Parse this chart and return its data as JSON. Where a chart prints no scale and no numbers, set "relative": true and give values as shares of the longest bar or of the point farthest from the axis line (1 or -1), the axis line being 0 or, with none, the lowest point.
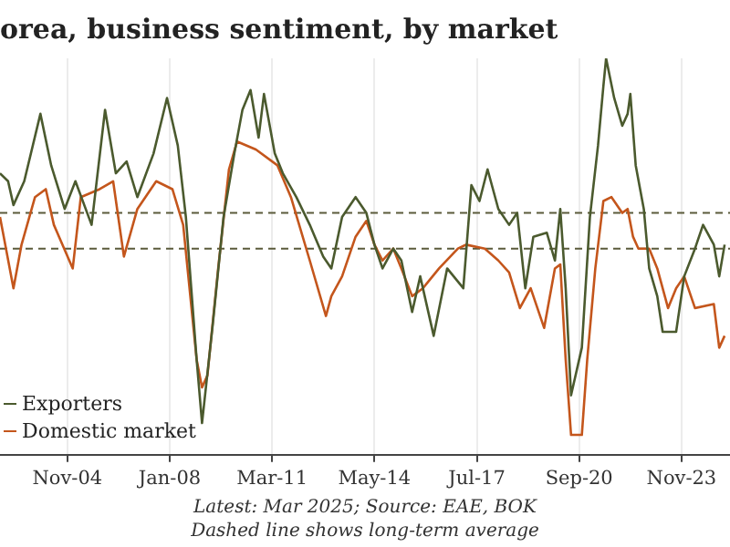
{
  "chart_data": {
    "type": "line",
    "title": "orea, business sentiment, by market",
    "relative": true,
    "grid": "x",
    "legend": "bottom left",
    "annotations": [
      "Latest: Mar 2025; Source: EAE, BOK",
      "Dashed line shows long-term average"
    ],
    "xlim": [
      "2002-10",
      "2025-05"
    ],
    "xticks": [
      {
        "value": "2004-11",
        "label": "Nov-04"
      },
      {
        "value": "2008-01",
        "label": "Jan-08"
      },
      {
        "value": "2011-03",
        "label": "Mar-11"
      },
      {
        "value": "2014-05",
        "label": "May-14"
      },
      {
        "value": "2017-07",
        "label": "Jul-17"
      },
      {
        "value": "2020-09",
        "label": "Sep-20"
      },
      {
        "value": "2023-11",
        "label": "Nov-23"
      }
    ],
    "ref_lines": [
      {
        "axis": "y",
        "value": 0.61,
        "color": "#5b5b3b",
        "line_style": "dashed"
      },
      {
        "axis": "y",
        "value": 0.52,
        "color": "#5b5b3b",
        "line_style": "dashed"
      }
    ],
    "series": [
      {
        "name": "Exporters",
        "color": "#4b5a2e",
        "x": [
          "2002-10",
          "2003-01",
          "2003-03",
          "2003-07",
          "2004-01",
          "2004-05",
          "2004-10",
          "2005-02",
          "2005-08",
          "2006-01",
          "2006-05",
          "2006-09",
          "2007-01",
          "2007-07",
          "2007-12",
          "2008-04",
          "2008-07",
          "2008-11",
          "2009-01",
          "2009-05",
          "2009-09",
          "2010-01",
          "2010-04",
          "2010-07",
          "2010-10",
          "2010-12",
          "2011-04",
          "2011-07",
          "2011-12",
          "2012-05",
          "2012-10",
          "2013-01",
          "2013-05",
          "2013-10",
          "2014-02",
          "2014-05",
          "2014-08",
          "2014-12",
          "2015-03",
          "2015-07",
          "2015-10",
          "2016-03",
          "2016-08",
          "2017-02",
          "2017-05",
          "2017-08",
          "2017-11",
          "2018-03",
          "2018-07",
          "2018-10",
          "2019-01",
          "2019-04",
          "2019-09",
          "2019-12",
          "2020-02",
          "2020-04",
          "2020-06",
          "2020-10",
          "2021-01",
          "2021-04",
          "2021-06",
          "2021-07",
          "2021-10",
          "2022-01",
          "2022-03",
          "2022-04",
          "2022-06",
          "2022-09",
          "2022-11",
          "2023-02",
          "2023-04",
          "2023-09",
          "2023-12",
          "2024-04",
          "2024-07",
          "2024-11",
          "2025-01",
          "2025-03"
        ],
        "values": [
          0.71,
          0.69,
          0.63,
          0.69,
          0.86,
          0.73,
          0.62,
          0.69,
          0.58,
          0.87,
          0.71,
          0.74,
          0.65,
          0.76,
          0.9,
          0.78,
          0.6,
          0.24,
          0.08,
          0.33,
          0.6,
          0.76,
          0.87,
          0.92,
          0.8,
          0.91,
          0.76,
          0.71,
          0.65,
          0.58,
          0.5,
          0.47,
          0.6,
          0.65,
          0.61,
          0.53,
          0.47,
          0.52,
          0.49,
          0.36,
          0.45,
          0.3,
          0.47,
          0.42,
          0.68,
          0.64,
          0.72,
          0.62,
          0.58,
          0.61,
          0.42,
          0.55,
          0.56,
          0.49,
          0.62,
          0.42,
          0.15,
          0.27,
          0.6,
          0.78,
          0.93,
          1.0,
          0.9,
          0.83,
          0.86,
          0.91,
          0.73,
          0.62,
          0.47,
          0.4,
          0.31,
          0.31,
          0.45,
          0.52,
          0.58,
          0.53,
          0.45,
          0.53
        ]
      },
      {
        "name": "Domestic market",
        "color": "#c4561c",
        "x": [
          "2002-10",
          "2003-03",
          "2003-06",
          "2003-11",
          "2004-03",
          "2004-06",
          "2005-01",
          "2005-04",
          "2005-11",
          "2006-04",
          "2006-08",
          "2007-01",
          "2007-08",
          "2008-02",
          "2008-06",
          "2008-11",
          "2009-01",
          "2009-03",
          "2009-07",
          "2009-11",
          "2010-02",
          "2010-09",
          "2011-05",
          "2011-10",
          "2012-05",
          "2012-11",
          "2013-01",
          "2013-05",
          "2013-10",
          "2014-02",
          "2014-05",
          "2014-08",
          "2014-12",
          "2015-03",
          "2015-07",
          "2015-11",
          "2016-05",
          "2016-12",
          "2017-03",
          "2017-10",
          "2018-03",
          "2018-07",
          "2018-11",
          "2019-03",
          "2019-08",
          "2019-12",
          "2020-02",
          "2020-04",
          "2020-06",
          "2020-10",
          "2020-12",
          "2021-03",
          "2021-06",
          "2021-09",
          "2022-01",
          "2022-03",
          "2022-05",
          "2022-07",
          "2022-11",
          "2023-02",
          "2023-06",
          "2023-09",
          "2023-12",
          "2024-04",
          "2024-11",
          "2025-01",
          "2025-03"
        ],
        "values": [
          0.6,
          0.42,
          0.53,
          0.65,
          0.67,
          0.58,
          0.47,
          0.65,
          0.67,
          0.69,
          0.5,
          0.62,
          0.69,
          0.67,
          0.58,
          0.24,
          0.17,
          0.2,
          0.47,
          0.72,
          0.79,
          0.77,
          0.73,
          0.65,
          0.49,
          0.35,
          0.4,
          0.45,
          0.55,
          0.59,
          0.53,
          0.49,
          0.52,
          0.47,
          0.4,
          0.42,
          0.47,
          0.52,
          0.53,
          0.52,
          0.49,
          0.46,
          0.37,
          0.42,
          0.32,
          0.47,
          0.48,
          0.24,
          0.05,
          0.05,
          0.24,
          0.47,
          0.64,
          0.65,
          0.61,
          0.62,
          0.55,
          0.52,
          0.52,
          0.47,
          0.37,
          0.42,
          0.45,
          0.37,
          0.38,
          0.27,
          0.3
        ]
      }
    ]
  }
}
